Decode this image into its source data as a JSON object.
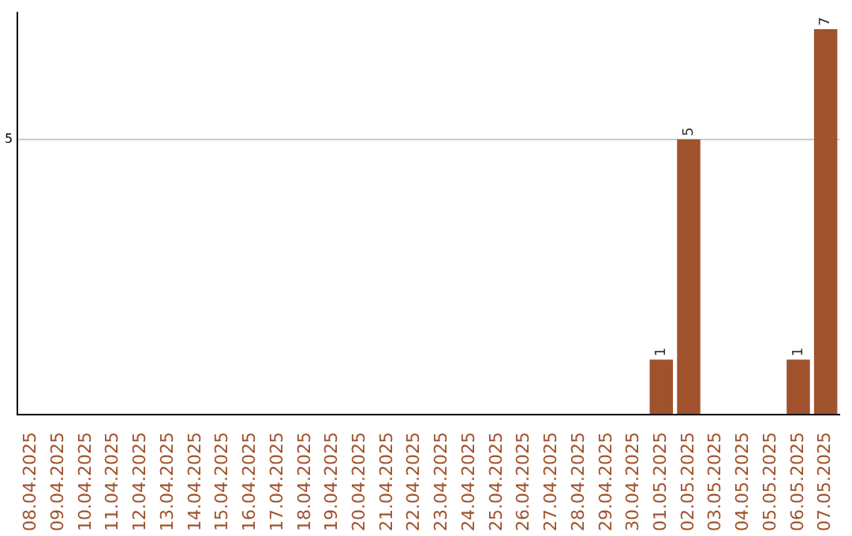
{
  "chart_data": {
    "type": "bar",
    "categories": [
      "08.04.2025",
      "09.04.2025",
      "10.04.2025",
      "11.04.2025",
      "12.04.2025",
      "13.04.2025",
      "14.04.2025",
      "15.04.2025",
      "16.04.2025",
      "17.04.2025",
      "18.04.2025",
      "19.04.2025",
      "20.04.2025",
      "21.04.2025",
      "22.04.2025",
      "23.04.2025",
      "24.04.2025",
      "25.04.2025",
      "26.04.2025",
      "27.04.2025",
      "28.04.2025",
      "29.04.2025",
      "30.04.2025",
      "01.05.2025",
      "02.05.2025",
      "03.05.2025",
      "04.05.2025",
      "05.05.2025",
      "06.05.2025",
      "07.05.2025"
    ],
    "values": [
      null,
      null,
      null,
      null,
      null,
      null,
      null,
      null,
      null,
      null,
      null,
      null,
      null,
      null,
      null,
      null,
      null,
      null,
      null,
      null,
      null,
      null,
      null,
      1,
      5,
      null,
      null,
      null,
      1,
      7
    ],
    "data_labels": true,
    "color": "#a0522d",
    "ylim": [
      0,
      7.3
    ],
    "yticks": [
      {
        "value": 0,
        "label": null
      },
      5
    ],
    "grid": "y",
    "legend": false
  }
}
